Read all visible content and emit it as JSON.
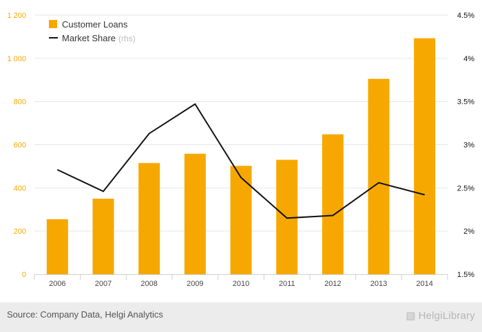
{
  "chart_data": {
    "type": "bar",
    "categories": [
      "2006",
      "2007",
      "2008",
      "2009",
      "2010",
      "2011",
      "2012",
      "2013",
      "2014"
    ],
    "series": [
      {
        "name": "Customer Loans",
        "type": "bar",
        "axis": "left",
        "color": "#f7a800",
        "values": [
          255,
          350,
          515,
          558,
          502,
          530,
          648,
          905,
          1093
        ]
      },
      {
        "name": "Market Share",
        "type": "line",
        "axis": "right",
        "color": "#111111",
        "values": [
          2.71,
          2.46,
          3.13,
          3.47,
          2.62,
          2.15,
          2.18,
          2.56,
          2.42
        ]
      }
    ],
    "legend": {
      "items": [
        {
          "label": "Customer Loans",
          "suffix": ""
        },
        {
          "label": "Market Share",
          "suffix": "(rhs)"
        }
      ],
      "position": "top-left"
    },
    "y_left": {
      "range": [
        0,
        1200
      ],
      "ticks": [
        0,
        200,
        400,
        600,
        800,
        1000,
        1200
      ],
      "tick_labels": [
        "0",
        "200",
        "400",
        "600",
        "800",
        "1 000",
        "1 200"
      ],
      "color": "#f7a800"
    },
    "y_right": {
      "range": [
        1.5,
        4.5
      ],
      "ticks": [
        1.5,
        2,
        2.5,
        3,
        3.5,
        4,
        4.5
      ],
      "tick_labels": [
        "1.5%",
        "2%",
        "2.5%",
        "3%",
        "3.5%",
        "4%",
        "4.5%"
      ],
      "color": "#111111"
    },
    "grid": true
  },
  "footer": {
    "source": "Source: Company Data, Helgi Analytics",
    "brand": "HelgiLibrary"
  }
}
